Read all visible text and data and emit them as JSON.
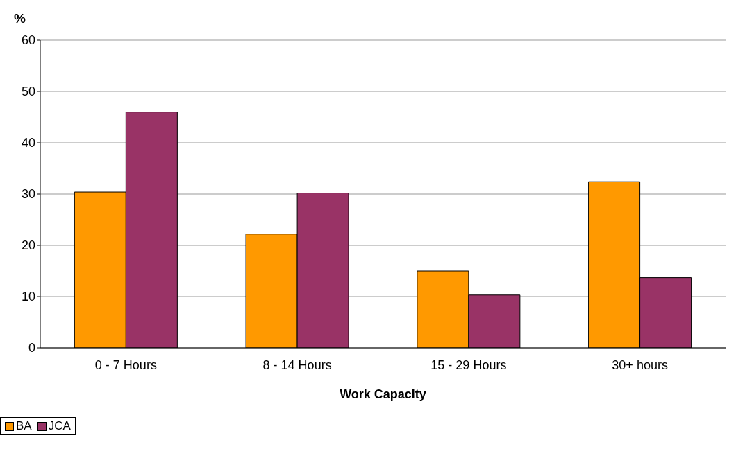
{
  "chart_data": {
    "type": "bar",
    "xlabel": "Work Capacity",
    "ylabel": "%",
    "categories": [
      "0 - 7 Hours",
      "8 - 14 Hours",
      "15 - 29 Hours",
      "30+ hours"
    ],
    "series": [
      {
        "name": "BA",
        "color": "#ff9900",
        "values": [
          30.4,
          22.2,
          15,
          32.4
        ]
      },
      {
        "name": "JCA",
        "color": "#993366",
        "values": [
          46,
          30.2,
          10.3,
          13.7
        ]
      }
    ],
    "ylim": [
      0,
      60
    ],
    "yticks": [
      0,
      10,
      20,
      30,
      40,
      50,
      60
    ],
    "grid": "y",
    "legend": "bottom"
  }
}
